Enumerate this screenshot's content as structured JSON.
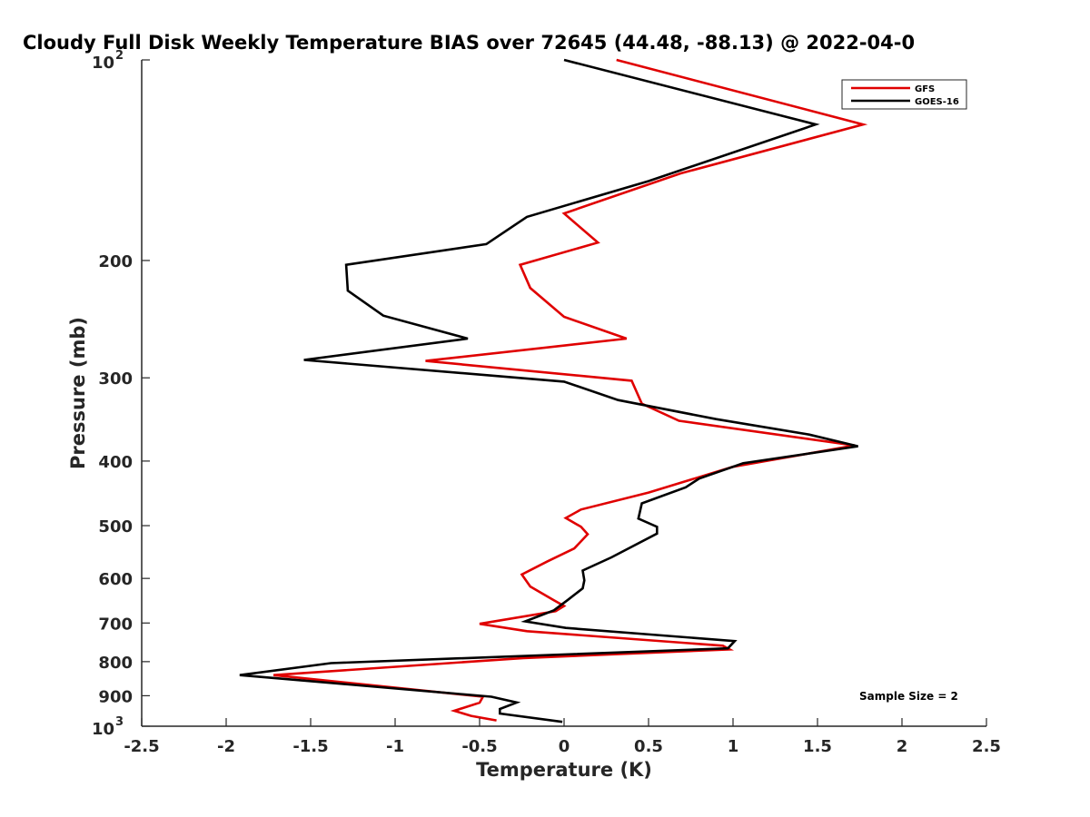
{
  "chart_data": {
    "type": "line",
    "title": "Cloudy Full Disk Weekly Temperature BIAS over 72645 (44.48, -88.13) @ 2022-04-0",
    "xlabel": "Temperature (K)",
    "ylabel": "Pressure (mb)",
    "xlim": [
      -2.5,
      2.5
    ],
    "ylim": [
      100,
      1000
    ],
    "y_scale": "log",
    "y_reversed": true,
    "x_ticks": [
      "-2.5",
      "-2",
      "-1.5",
      "-1",
      "-0.5",
      "0",
      "0.5",
      "1",
      "1.5",
      "2",
      "2.5"
    ],
    "x_tick_values": [
      -2.5,
      -2,
      -1.5,
      -1,
      -0.5,
      0,
      0.5,
      1,
      1.5,
      2,
      2.5
    ],
    "y_ticks": [
      {
        "value": 100,
        "base": "10",
        "exp": "2"
      },
      {
        "value": 200,
        "label": "200"
      },
      {
        "value": 300,
        "label": "300"
      },
      {
        "value": 400,
        "label": "400"
      },
      {
        "value": 500,
        "label": "500"
      },
      {
        "value": 600,
        "label": "600"
      },
      {
        "value": 700,
        "label": "700"
      },
      {
        "value": 800,
        "label": "800"
      },
      {
        "value": 900,
        "label": "900"
      },
      {
        "value": 1000,
        "base": "10",
        "exp": "3"
      }
    ],
    "grid": false,
    "legend_position": "top-right",
    "annotation": "Sample Size = 2",
    "series": [
      {
        "name": "GFS",
        "color": "#e00000",
        "points": [
          [
            0.31,
            100
          ],
          [
            1.77,
            125
          ],
          [
            0.69,
            148
          ],
          [
            0.0,
            170
          ],
          [
            0.2,
            188
          ],
          [
            -0.26,
            203
          ],
          [
            -0.2,
            220
          ],
          [
            0.0,
            243
          ],
          [
            0.37,
            262
          ],
          [
            -0.82,
            283
          ],
          [
            0.4,
            303
          ],
          [
            0.46,
            328
          ],
          [
            0.68,
            348
          ],
          [
            1.72,
            379
          ],
          [
            1.0,
            408
          ],
          [
            0.5,
            446
          ],
          [
            0.1,
            473
          ],
          [
            0.01,
            487
          ],
          [
            0.1,
            502
          ],
          [
            0.14,
            515
          ],
          [
            0.06,
            541
          ],
          [
            -0.1,
            566
          ],
          [
            -0.25,
            592
          ],
          [
            -0.2,
            617
          ],
          [
            -0.06,
            647
          ],
          [
            0.0,
            660
          ],
          [
            -0.05,
            672
          ],
          [
            -0.5,
            702
          ],
          [
            -0.22,
            720
          ],
          [
            0.94,
            757
          ],
          [
            0.98,
            767
          ],
          [
            -0.24,
            790
          ],
          [
            -1.72,
            838
          ],
          [
            -0.48,
            903
          ],
          [
            -0.5,
            922
          ],
          [
            -0.65,
            948
          ],
          [
            -0.55,
            965
          ],
          [
            -0.4,
            980
          ]
        ]
      },
      {
        "name": "GOES-16",
        "color": "#000000",
        "points": [
          [
            0.0,
            100
          ],
          [
            1.49,
            125
          ],
          [
            0.5,
            152
          ],
          [
            -0.22,
            172
          ],
          [
            -0.46,
            189
          ],
          [
            -1.29,
            203
          ],
          [
            -1.28,
            222
          ],
          [
            -1.07,
            242
          ],
          [
            -0.57,
            262
          ],
          [
            -1.54,
            282
          ],
          [
            0.0,
            304
          ],
          [
            0.32,
            324
          ],
          [
            0.9,
            346
          ],
          [
            1.45,
            365
          ],
          [
            1.74,
            380
          ],
          [
            1.06,
            403
          ],
          [
            0.8,
            425
          ],
          [
            0.72,
            438
          ],
          [
            0.46,
            463
          ],
          [
            0.44,
            488
          ],
          [
            0.55,
            502
          ],
          [
            0.55,
            514
          ],
          [
            0.28,
            558
          ],
          [
            0.11,
            584
          ],
          [
            0.12,
            604
          ],
          [
            0.11,
            621
          ],
          [
            0.02,
            647
          ],
          [
            -0.06,
            670
          ],
          [
            -0.23,
            696
          ],
          [
            0.01,
            712
          ],
          [
            1.01,
            745
          ],
          [
            0.97,
            764
          ],
          [
            -1.38,
            804
          ],
          [
            -1.92,
            838
          ],
          [
            -0.43,
            903
          ],
          [
            -0.28,
            921
          ],
          [
            -0.38,
            942
          ],
          [
            -0.38,
            957
          ],
          [
            -0.01,
            985
          ]
        ]
      }
    ]
  }
}
